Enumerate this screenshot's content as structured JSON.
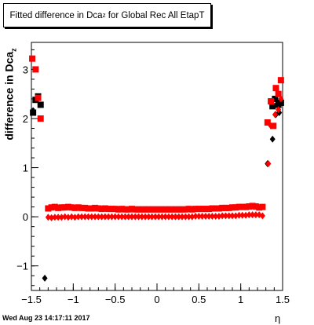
{
  "title": {
    "pre": "Fitted difference in Dca",
    "sub": "z",
    "post": " for Global Rec All EtapT"
  },
  "ylabel": {
    "pre": "difference in Dca",
    "sub": "z"
  },
  "xlabel": "η",
  "timestamp": "Wed Aug 23 14:17:11 2017",
  "colors": {
    "series_a": "#ff0000",
    "series_b": "#000000",
    "axis": "#000000"
  },
  "chart_data": {
    "type": "scatter",
    "title": "Fitted difference in Dca_z for Global Rec All EtapT",
    "xlabel": "η",
    "ylabel": "difference in Dca_z",
    "xlim": [
      -1.5,
      1.5
    ],
    "ylim": [
      -1.5,
      3.55
    ],
    "x_ticks": [
      -1.5,
      -1,
      -0.5,
      0,
      0.5,
      1,
      1.5
    ],
    "x_tick_labels": [
      "−1.5",
      "−1",
      "−0.5",
      "0",
      "0.5",
      "1",
      "1.5"
    ],
    "y_ticks": [
      -1,
      0,
      1,
      2,
      3
    ],
    "y_tick_labels": [
      "−1",
      "0",
      "1",
      "2",
      "3"
    ],
    "series": [
      {
        "marker": "square",
        "color": "#000000",
        "points": [
          [
            -1.48,
            2.12
          ],
          [
            -1.45,
            2.38
          ],
          [
            -1.42,
            2.45
          ],
          [
            -1.39,
            2.28
          ],
          [
            1.38,
            2.25
          ],
          [
            1.41,
            2.4
          ],
          [
            1.45,
            2.28
          ],
          [
            1.48,
            2.32
          ]
        ]
      },
      {
        "marker": "diamond",
        "color": "#000000",
        "points": [
          [
            -1.48,
            2.16
          ],
          [
            -1.34,
            -1.25
          ],
          [
            1.32,
            1.08
          ],
          [
            1.38,
            1.58
          ],
          [
            1.42,
            2.08
          ],
          [
            1.46,
            2.12
          ]
        ]
      },
      {
        "marker": "square",
        "color": "#ff0000",
        "points": [
          [
            -1.49,
            3.22
          ],
          [
            -1.45,
            3.0
          ],
          [
            -1.42,
            2.42
          ],
          [
            -1.39,
            2.0
          ],
          [
            -1.3,
            0.17
          ],
          [
            -1.26,
            0.19
          ],
          [
            -1.22,
            0.2
          ],
          [
            -1.18,
            0.18
          ],
          [
            -1.14,
            0.19
          ],
          [
            -1.1,
            0.19
          ],
          [
            -1.06,
            0.2
          ],
          [
            -1.02,
            0.19
          ],
          [
            -0.98,
            0.18
          ],
          [
            -0.94,
            0.19
          ],
          [
            -0.9,
            0.18
          ],
          [
            -0.86,
            0.18
          ],
          [
            -0.82,
            0.17
          ],
          [
            -0.78,
            0.17
          ],
          [
            -0.74,
            0.18
          ],
          [
            -0.7,
            0.17
          ],
          [
            -0.66,
            0.16
          ],
          [
            -0.62,
            0.17
          ],
          [
            -0.58,
            0.16
          ],
          [
            -0.54,
            0.16
          ],
          [
            -0.5,
            0.16
          ],
          [
            -0.46,
            0.15
          ],
          [
            -0.42,
            0.16
          ],
          [
            -0.38,
            0.15
          ],
          [
            -0.34,
            0.15
          ],
          [
            -0.3,
            0.16
          ],
          [
            -0.26,
            0.15
          ],
          [
            -0.22,
            0.15
          ],
          [
            -0.18,
            0.15
          ],
          [
            -0.14,
            0.15
          ],
          [
            -0.1,
            0.15
          ],
          [
            -0.06,
            0.15
          ],
          [
            -0.02,
            0.15
          ],
          [
            0.02,
            0.15
          ],
          [
            0.06,
            0.15
          ],
          [
            0.1,
            0.15
          ],
          [
            0.14,
            0.15
          ],
          [
            0.18,
            0.15
          ],
          [
            0.22,
            0.15
          ],
          [
            0.26,
            0.15
          ],
          [
            0.3,
            0.15
          ],
          [
            0.34,
            0.15
          ],
          [
            0.38,
            0.16
          ],
          [
            0.42,
            0.15
          ],
          [
            0.46,
            0.16
          ],
          [
            0.5,
            0.16
          ],
          [
            0.54,
            0.16
          ],
          [
            0.58,
            0.16
          ],
          [
            0.62,
            0.16
          ],
          [
            0.66,
            0.17
          ],
          [
            0.7,
            0.17
          ],
          [
            0.74,
            0.17
          ],
          [
            0.78,
            0.18
          ],
          [
            0.82,
            0.18
          ],
          [
            0.86,
            0.18
          ],
          [
            0.9,
            0.19
          ],
          [
            0.94,
            0.19
          ],
          [
            0.98,
            0.2
          ],
          [
            1.02,
            0.2
          ],
          [
            1.06,
            0.2
          ],
          [
            1.1,
            0.21
          ],
          [
            1.14,
            0.22
          ],
          [
            1.18,
            0.21
          ],
          [
            1.22,
            0.19
          ],
          [
            1.26,
            0.2
          ],
          [
            1.32,
            1.92
          ],
          [
            1.36,
            2.35
          ],
          [
            1.39,
            1.85
          ],
          [
            1.42,
            2.62
          ],
          [
            1.45,
            2.5
          ],
          [
            1.48,
            2.78
          ]
        ]
      },
      {
        "marker": "diamond",
        "color": "#ff0000",
        "points": [
          [
            -1.3,
            -0.01
          ],
          [
            -1.26,
            -0.02
          ],
          [
            -1.22,
            -0.01
          ],
          [
            -1.18,
            -0.01
          ],
          [
            -1.14,
            -0.01
          ],
          [
            -1.1,
            0.0
          ],
          [
            -1.06,
            -0.01
          ],
          [
            -1.02,
            0.0
          ],
          [
            -0.98,
            -0.01
          ],
          [
            -0.94,
            0.0
          ],
          [
            -0.9,
            0.0
          ],
          [
            -0.86,
            0.0
          ],
          [
            -0.82,
            0.0
          ],
          [
            -0.78,
            0.0
          ],
          [
            -0.74,
            0.0
          ],
          [
            -0.7,
            0.0
          ],
          [
            -0.66,
            0.0
          ],
          [
            -0.62,
            0.0
          ],
          [
            -0.58,
            0.0
          ],
          [
            -0.54,
            0.0
          ],
          [
            -0.5,
            0.0
          ],
          [
            -0.46,
            0.0
          ],
          [
            -0.42,
            0.0
          ],
          [
            -0.38,
            0.0
          ],
          [
            -0.34,
            0.0
          ],
          [
            -0.3,
            0.0
          ],
          [
            -0.26,
            0.0
          ],
          [
            -0.22,
            0.0
          ],
          [
            -0.18,
            0.0
          ],
          [
            -0.14,
            0.0
          ],
          [
            -0.1,
            0.0
          ],
          [
            -0.06,
            0.0
          ],
          [
            -0.02,
            0.0
          ],
          [
            0.02,
            0.0
          ],
          [
            0.06,
            0.0
          ],
          [
            0.1,
            0.0
          ],
          [
            0.14,
            0.0
          ],
          [
            0.18,
            0.0
          ],
          [
            0.22,
            0.0
          ],
          [
            0.26,
            0.0
          ],
          [
            0.3,
            0.0
          ],
          [
            0.34,
            0.0
          ],
          [
            0.38,
            0.0
          ],
          [
            0.42,
            0.0
          ],
          [
            0.46,
            0.01
          ],
          [
            0.5,
            0.01
          ],
          [
            0.54,
            0.01
          ],
          [
            0.58,
            0.01
          ],
          [
            0.62,
            0.01
          ],
          [
            0.66,
            0.01
          ],
          [
            0.7,
            0.01
          ],
          [
            0.74,
            0.01
          ],
          [
            0.78,
            0.02
          ],
          [
            0.82,
            0.02
          ],
          [
            0.86,
            0.02
          ],
          [
            0.9,
            0.02
          ],
          [
            0.94,
            0.02
          ],
          [
            0.98,
            0.03
          ],
          [
            1.02,
            0.03
          ],
          [
            1.06,
            0.03
          ],
          [
            1.1,
            0.04
          ],
          [
            1.14,
            0.04
          ],
          [
            1.18,
            0.04
          ],
          [
            1.22,
            0.04
          ],
          [
            1.26,
            0.02
          ],
          [
            1.33,
            1.08
          ],
          [
            1.36,
            1.85
          ],
          [
            1.41,
            2.08
          ],
          [
            1.45,
            2.18
          ],
          [
            1.48,
            2.4
          ]
        ]
      }
    ]
  }
}
